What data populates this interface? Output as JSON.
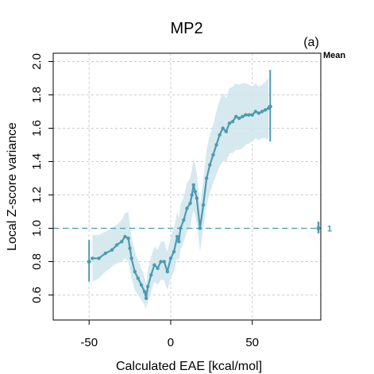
{
  "chart_data": {
    "type": "line",
    "title": "MP2",
    "panel_label": "(a)",
    "xlabel": "Calculated EAE [kcal/mol]",
    "ylabel": "Local Z-score variance",
    "xlim": [
      -72,
      92
    ],
    "ylim": [
      0.45,
      2.05
    ],
    "xticks": [
      -50,
      0,
      50
    ],
    "yticks": [
      0.6,
      0.8,
      1.0,
      1.2,
      1.4,
      1.6,
      1.8,
      2.0
    ],
    "grid": true,
    "colors": {
      "series": "#4b9bb1",
      "band": "#cfe5ec",
      "grid": "#cccccc",
      "axis": "#000000"
    },
    "reference_line": {
      "y": 1.0,
      "label": "1"
    },
    "mean_label": "Mean",
    "series": {
      "x": [
        -48,
        -44,
        -40,
        -36,
        -33,
        -30,
        -28,
        -26,
        -25,
        -24,
        -22,
        -20,
        -18,
        -16,
        -15,
        -14,
        -12,
        -10,
        -8,
        -6,
        -4,
        -2,
        0,
        2,
        4,
        5,
        6,
        8,
        10,
        12,
        13,
        14,
        15,
        16,
        18,
        20,
        22,
        24,
        26,
        28,
        30,
        32,
        34,
        36,
        38,
        40,
        42,
        44,
        46,
        48,
        50,
        52,
        54,
        56,
        58,
        60
      ],
      "y": [
        0.82,
        0.82,
        0.85,
        0.87,
        0.9,
        0.92,
        0.95,
        0.94,
        0.88,
        0.82,
        0.74,
        0.7,
        0.66,
        0.62,
        0.58,
        0.65,
        0.72,
        0.78,
        0.76,
        0.8,
        0.8,
        0.74,
        0.82,
        0.86,
        0.95,
        0.92,
        1.0,
        1.05,
        1.12,
        1.15,
        1.2,
        1.26,
        1.22,
        1.18,
        1.0,
        1.14,
        1.3,
        1.38,
        1.44,
        1.5,
        1.56,
        1.6,
        1.58,
        1.63,
        1.64,
        1.67,
        1.66,
        1.67,
        1.68,
        1.68,
        1.68,
        1.7,
        1.69,
        1.7,
        1.71,
        1.72
      ],
      "band_low": [
        0.68,
        0.7,
        0.74,
        0.77,
        0.79,
        0.8,
        0.82,
        0.8,
        0.75,
        0.7,
        0.63,
        0.6,
        0.57,
        0.54,
        0.52,
        0.56,
        0.62,
        0.68,
        0.66,
        0.69,
        0.69,
        0.63,
        0.7,
        0.74,
        0.82,
        0.8,
        0.87,
        0.92,
        0.98,
        1.01,
        1.06,
        1.11,
        1.07,
        1.03,
        0.86,
        1.0,
        1.14,
        1.21,
        1.27,
        1.32,
        1.37,
        1.4,
        1.4,
        1.45,
        1.45,
        1.47,
        1.47,
        1.48,
        1.5,
        1.51,
        1.52,
        1.54,
        1.53,
        1.54,
        1.54,
        1.53
      ],
      "band_high": [
        0.96,
        0.96,
        0.98,
        1.0,
        1.02,
        1.05,
        1.09,
        1.1,
        1.02,
        0.95,
        0.86,
        0.81,
        0.76,
        0.71,
        0.66,
        0.75,
        0.83,
        0.89,
        0.87,
        0.92,
        0.92,
        0.86,
        0.95,
        1.0,
        1.1,
        1.06,
        1.14,
        1.19,
        1.27,
        1.3,
        1.35,
        1.42,
        1.38,
        1.33,
        1.14,
        1.29,
        1.47,
        1.56,
        1.62,
        1.7,
        1.77,
        1.81,
        1.78,
        1.84,
        1.85,
        1.87,
        1.86,
        1.87,
        1.87,
        1.86,
        1.85,
        1.87,
        1.85,
        1.86,
        1.88,
        1.9
      ]
    },
    "end_errorbars": [
      {
        "x": -50,
        "y": 0.8,
        "low": 0.68,
        "high": 0.93
      },
      {
        "x": 61,
        "y": 1.73,
        "low": 1.52,
        "high": 1.95
      }
    ],
    "mean_errorbar": {
      "y": 1.0,
      "low": 0.97,
      "high": 1.04
    }
  }
}
